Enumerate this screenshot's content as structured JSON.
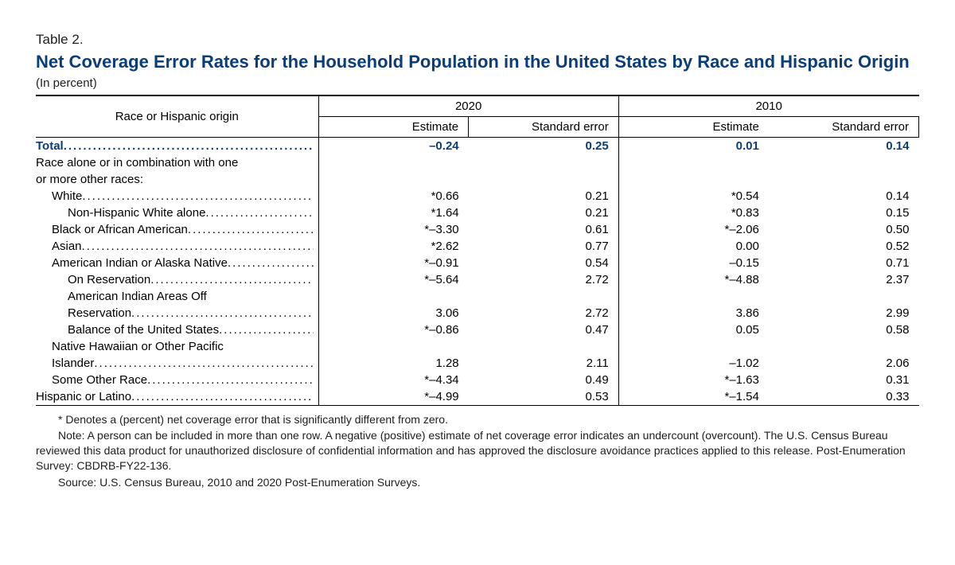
{
  "tableNumber": "Table 2.",
  "title": "Net Coverage Error Rates for the Household Population in the United States by Race and Hispanic Origin",
  "subtitle": "(In percent)",
  "titleColor": "#0b3d78",
  "totalColor": "#0b3d78",
  "columns": {
    "rowHeader": "Race or Hispanic origin",
    "years": [
      "2020",
      "2010"
    ],
    "subs": [
      "Estimate",
      "Standard error"
    ]
  },
  "rows": [
    {
      "label": "Total",
      "indent": 0,
      "isTotal": true,
      "nodots": false,
      "est2020": "–0.24",
      "se2020": "0.25",
      "est2010": "0.01",
      "se2010": "0.14"
    },
    {
      "label": "Race alone or in combination with one or more other races:",
      "indent": 0,
      "isSection": true,
      "nodots": true,
      "wrap": true
    },
    {
      "label": "White",
      "indent": 1,
      "est2020": "*0.66",
      "se2020": "0.21",
      "est2010": "*0.54",
      "se2010": "0.14"
    },
    {
      "label": "Non-Hispanic White alone",
      "indent": 2,
      "est2020": "*1.64",
      "se2020": "0.21",
      "est2010": "*0.83",
      "se2010": "0.15"
    },
    {
      "label": "Black or African American",
      "indent": 1,
      "est2020": "*–3.30",
      "se2020": "0.61",
      "est2010": "*–2.06",
      "se2010": "0.50"
    },
    {
      "label": "Asian",
      "indent": 1,
      "est2020": "*2.62",
      "se2020": "0.77",
      "est2010": "0.00",
      "se2010": "0.52"
    },
    {
      "label": "American Indian or Alaska Native",
      "indent": 1,
      "est2020": "*–0.91",
      "se2020": "0.54",
      "est2010": "–0.15",
      "se2010": "0.71"
    },
    {
      "label": "On Reservation",
      "indent": 2,
      "est2020": "*–5.64",
      "se2020": "2.72",
      "est2010": "*–4.88",
      "se2010": "2.37"
    },
    {
      "label": "American Indian Areas Off Reservation",
      "indent": 2,
      "wrap": true,
      "est2020": "3.06",
      "se2020": "2.72",
      "est2010": "3.86",
      "se2010": "2.99"
    },
    {
      "label": "Balance of the United States",
      "indent": 2,
      "est2020": "*–0.86",
      "se2020": "0.47",
      "est2010": "0.05",
      "se2010": "0.58"
    },
    {
      "label": "Native Hawaiian or Other Pacific Islander",
      "indent": 1,
      "wrap": true,
      "est2020": "1.28",
      "se2020": "2.11",
      "est2010": "–1.02",
      "se2010": "2.06"
    },
    {
      "label": "Some Other Race",
      "indent": 1,
      "est2020": "*–4.34",
      "se2020": "0.49",
      "est2010": "*–1.63",
      "se2010": "0.31"
    },
    {
      "label": "Hispanic or Latino",
      "indent": 0,
      "est2020": "*–4.99",
      "se2020": "0.53",
      "est2010": "*–1.54",
      "se2010": "0.33"
    }
  ],
  "notes": {
    "asterisk": "* Denotes a (percent) net coverage error that is significantly different from zero.",
    "note": "Note: A person can be included in more than one row. A negative (positive) estimate of net coverage error indicates an undercount (overcount). The U.S. Census Bureau reviewed this data product for unauthorized disclosure of confidential information and has approved the disclosure avoidance practices applied to this release. Post-Enumeration Survey: CBDRB-FY22-136.",
    "source": "Source: U.S. Census Bureau, 2010 and 2020 Post-Enumeration Surveys."
  }
}
